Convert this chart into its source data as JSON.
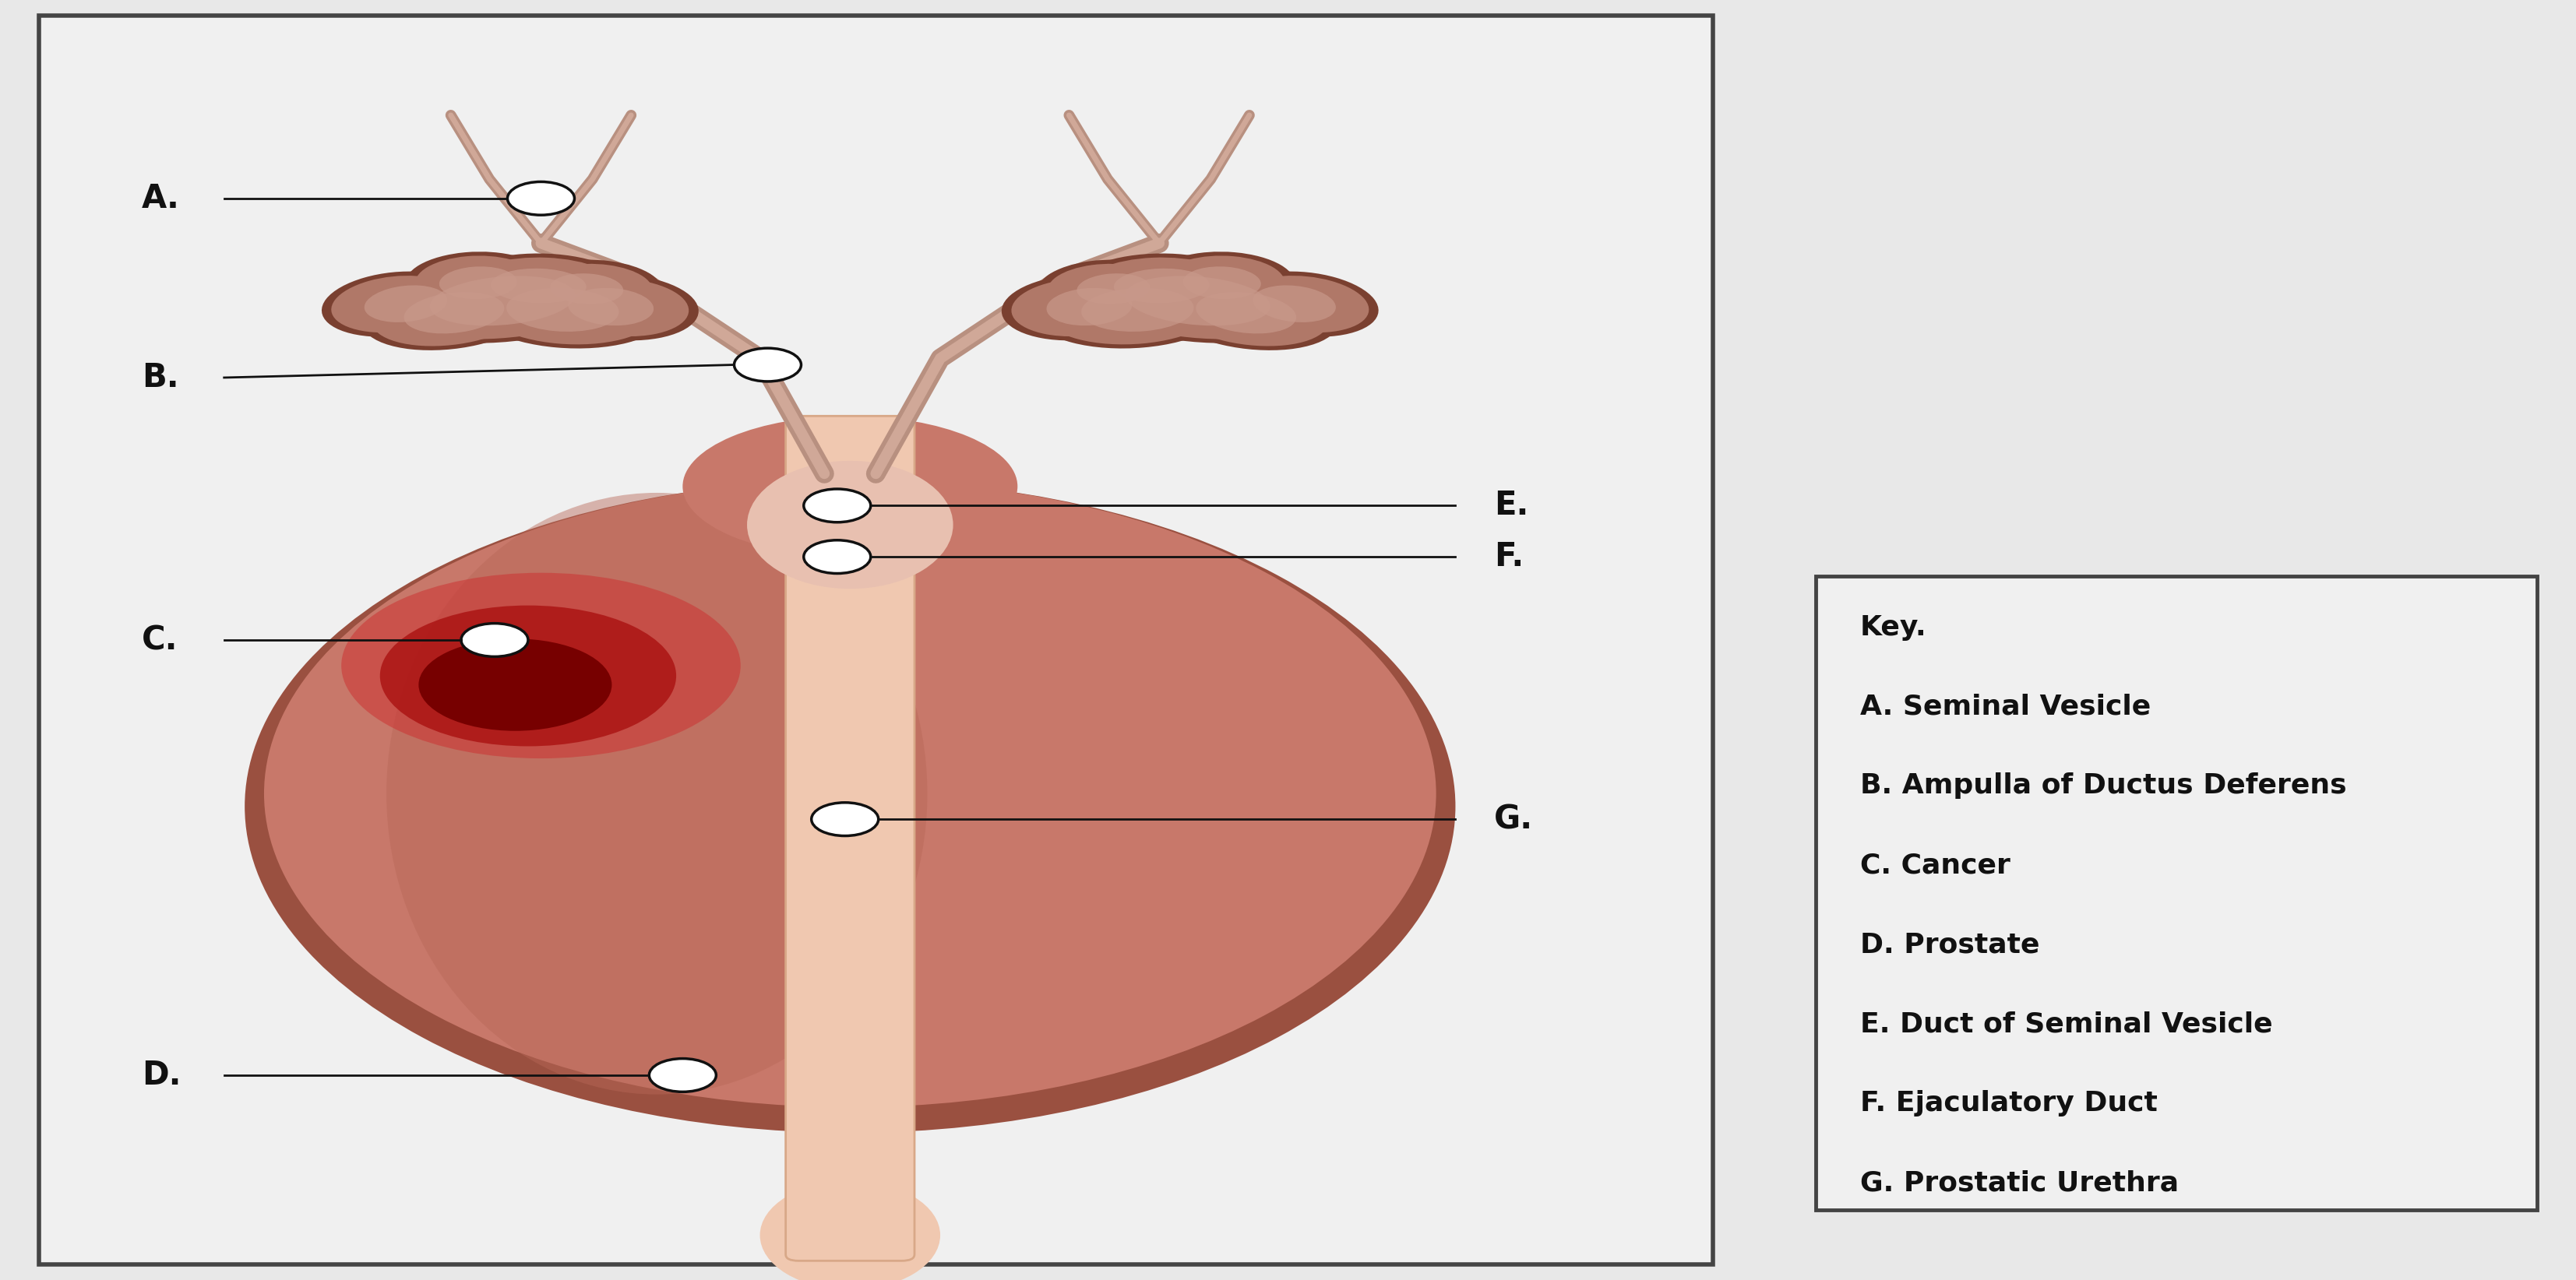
{
  "bg_color": "#e8e8e8",
  "diagram_bg": "#f0f0f0",
  "prostate_outer": "#9a5040",
  "prostate_main": "#c8786a",
  "prostate_left_lobe": "#b86858",
  "vesicle_outline": "#7a4030",
  "vesicle_fill_outer": "#b07868",
  "vesicle_fill_inner": "#c8988a",
  "ductus_tube_outer": "#b89080",
  "ductus_tube_inner": "#d0a898",
  "urethra_color": "#f0c8b0",
  "urethra_outline": "#d8a888",
  "ejac_region": "#e8c0b0",
  "cancer_outer": "#cc3333",
  "cancer_mid": "#aa1111",
  "cancer_inner": "#770000",
  "label_color": "#111111",
  "line_color": "#111111",
  "box_border": "#444444",
  "key_items": [
    "Key.",
    "A. Seminal Vesicle",
    "B. Ampulla of Ductus Deferens",
    "C. Cancer",
    "D. Prostate",
    "E. Duct of Seminal Vesicle",
    "F. Ejaculatory Duct",
    "G. Prostatic Urethra"
  ]
}
